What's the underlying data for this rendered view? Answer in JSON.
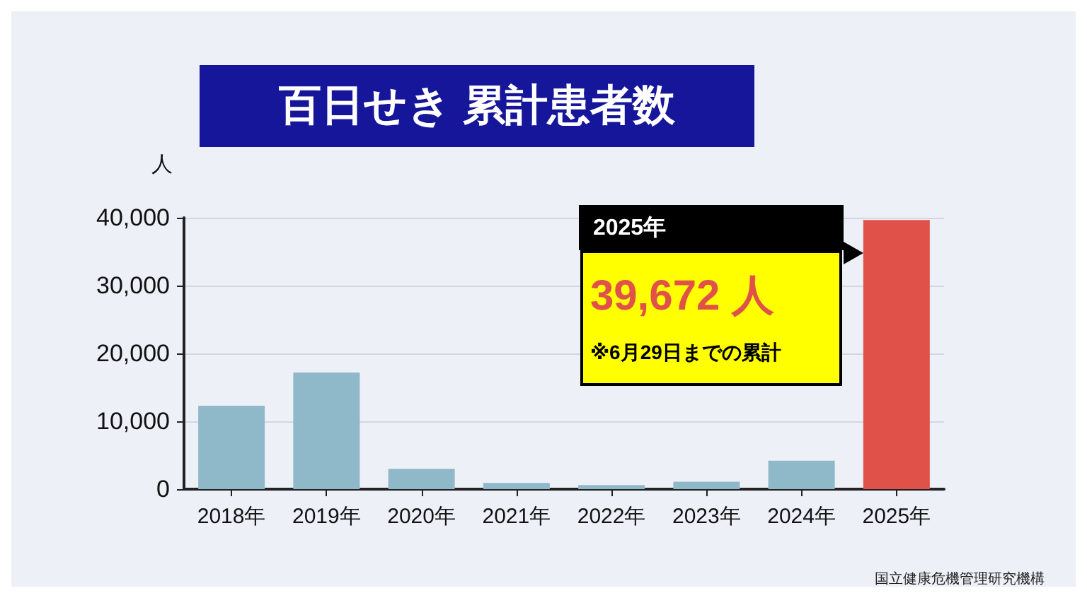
{
  "chart_data": {
    "type": "bar",
    "title": "百日せき 累計患者数",
    "ylabel": "人",
    "categories": [
      "2018年",
      "2019年",
      "2020年",
      "2021年",
      "2022年",
      "2023年",
      "2024年",
      "2025年"
    ],
    "values": [
      12300,
      17200,
      3000,
      900,
      600,
      1100,
      4200,
      39672
    ],
    "colors": [
      "#8fb8c9",
      "#8fb8c9",
      "#8fb8c9",
      "#8fb8c9",
      "#8fb8c9",
      "#8fb8c9",
      "#8fb8c9",
      "#e0514a"
    ],
    "annotations": [
      "2025年",
      "39,672 人",
      "※6月29日までの累計",
      "国立健康危機管理研究機構"
    ],
    "ylim": [
      0,
      40000
    ],
    "yticks": [
      0,
      {
        "value": 10000,
        "label": "10,000"
      },
      {
        "value": 20000,
        "label": "20,000"
      },
      {
        "value": 30000,
        "label": "30,000"
      },
      {
        "value": 40000,
        "label": "40,000"
      }
    ],
    "grid": "y"
  }
}
